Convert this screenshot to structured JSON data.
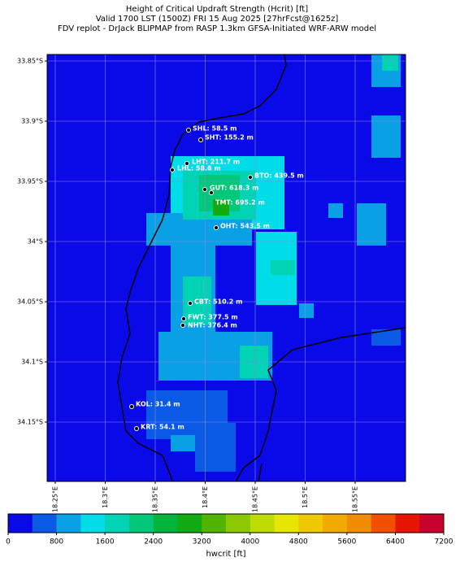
{
  "title": [
    "Height of Critical Updraft Strength (Hcrit) [ft]",
    "Valid 1700 LST (1500Z) FRI 15 Aug 2025 [27hrFcst@1625z]",
    "FDV replot - DrJack BLIPMAP from RASP 1.3km GFSA-Initiated WRF-ARW model"
  ],
  "map": {
    "lat_ticks": [
      {
        "value": -33.85,
        "label": "33.85°S"
      },
      {
        "value": -33.9,
        "label": "33.9°S"
      },
      {
        "value": -33.95,
        "label": "33.95°S"
      },
      {
        "value": -34,
        "label": "34°S"
      },
      {
        "value": -34.05,
        "label": "34.05°S"
      },
      {
        "value": -34.1,
        "label": "34.1°S"
      },
      {
        "value": -34.15,
        "label": "34.15°S"
      }
    ],
    "lon_ticks": [
      {
        "value": 18.25,
        "label": "18.25°E"
      },
      {
        "value": 18.3,
        "label": "18.3°E"
      },
      {
        "value": 18.35,
        "label": "18.35°E"
      },
      {
        "value": 18.4,
        "label": "18.4°E"
      },
      {
        "value": 18.45,
        "label": "18.45°E"
      },
      {
        "value": 18.5,
        "label": "18.5°E"
      },
      {
        "value": 18.55,
        "label": "18.55°E"
      }
    ],
    "grid": true,
    "stations": [
      "SHL: 58.5 m",
      "SHT: 155.2 m",
      "LHT: 211.7 m",
      "LHL: 58.6 m",
      "BTO: 439.5 m",
      "GUT: 618.3 m",
      "TMT: 695.2 m",
      "OHT: 543.5 m",
      "CBT: 510.2 m",
      "FWT: 377.5 m",
      "NHT: 376.4 m",
      "KOL: 31.4 m",
      "KRT: 54.1 m"
    ]
  },
  "colorbar": {
    "label": "hwcrit [ft]",
    "lim": [
      0,
      7200
    ],
    "ticks": [
      0,
      800,
      1600,
      2400,
      3200,
      4000,
      4800,
      5600,
      6400,
      7200
    ],
    "colors": [
      "#0a0ae8",
      "#0a5ae6",
      "#0aa0e6",
      "#00dce8",
      "#00d2b4",
      "#00c878",
      "#00b43c",
      "#14aa14",
      "#50b400",
      "#8cc800",
      "#bedc00",
      "#e6e600",
      "#f0c800",
      "#f0aa00",
      "#f08c00",
      "#f05000",
      "#e61400",
      "#c8002d"
    ]
  }
}
